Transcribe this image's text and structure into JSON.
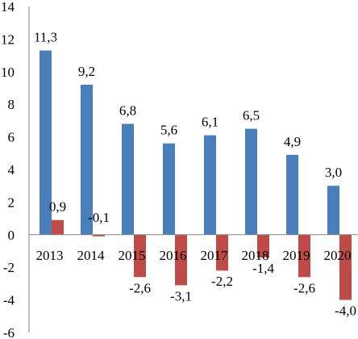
{
  "chart_data": {
    "type": "bar",
    "categories": [
      "2013",
      "2014",
      "2015",
      "2016",
      "2017",
      "2018",
      "2019",
      "2020"
    ],
    "series": [
      {
        "color": "#4A7EBB",
        "values": [
          11.3,
          9.2,
          6.8,
          5.6,
          6.1,
          6.5,
          4.9,
          3.0
        ],
        "labels": [
          "11,3",
          "9,2",
          "6,8",
          "5,6",
          "6,1",
          "6,5",
          "4,9",
          "3,0"
        ]
      },
      {
        "color": "#BE4B48",
        "values": [
          0.9,
          -0.1,
          -2.6,
          -3.1,
          -2.2,
          -1.4,
          -2.6,
          -4.0
        ],
        "labels": [
          "0,9",
          "-0,1",
          "-2,6",
          "-3,1",
          "-2,2",
          "-1,4",
          "-2,6",
          "-4,0"
        ]
      }
    ],
    "ylim": [
      -6,
      14
    ],
    "yticks": [
      -6,
      -4,
      -2,
      0,
      2,
      4,
      6,
      8,
      10,
      12,
      14
    ],
    "ytick_labels": [
      "-6",
      "-4",
      "-2",
      "0",
      "2",
      "4",
      "6",
      "8",
      "10",
      "12",
      "14"
    ],
    "grid": false,
    "legend": "none",
    "axis_color": "#868686"
  }
}
